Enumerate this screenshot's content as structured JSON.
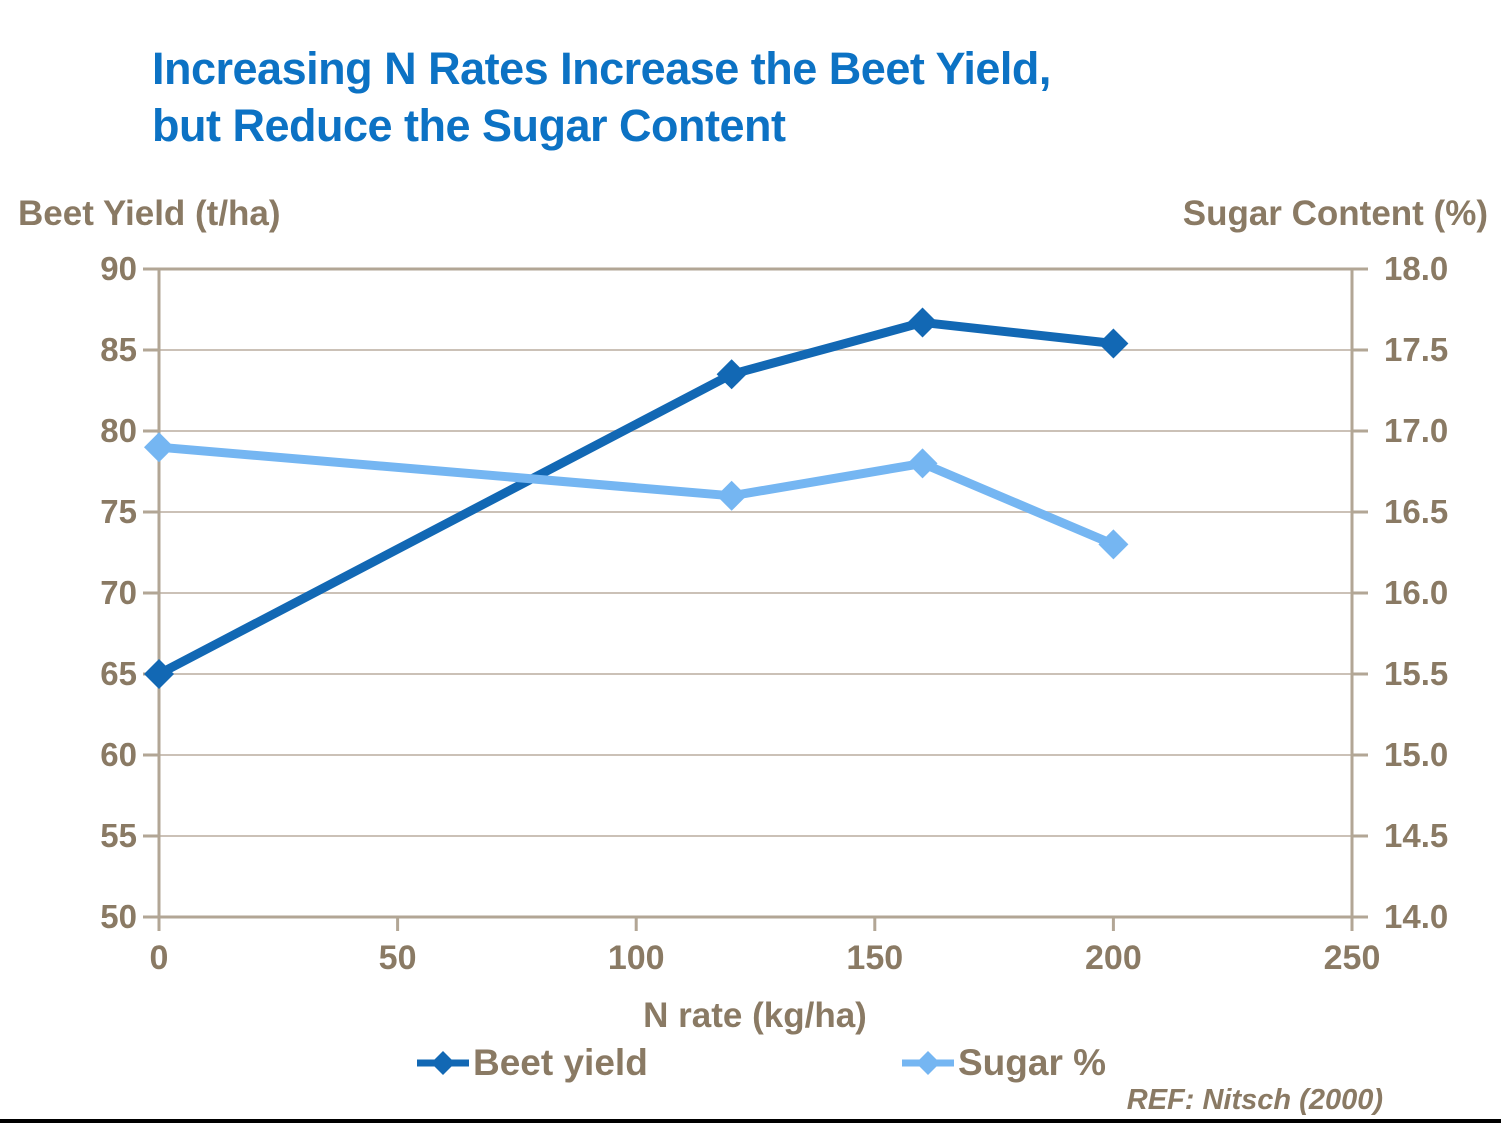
{
  "title": {
    "line1": "Increasing N Rates Increase the Beet Yield,",
    "line2": "but Reduce the Sugar Content",
    "color": "#0c72c4"
  },
  "footer": {
    "ref": "REF: Nitsch (2000)",
    "rule_color": "#000000"
  },
  "chart_data": {
    "type": "line",
    "title": "Increasing N Rates Increase the Beet Yield, but Reduce the Sugar Content",
    "x": [
      0,
      120,
      160,
      200
    ],
    "series": [
      {
        "name": "Beet yield",
        "axis": "left",
        "color": "#1268b4",
        "marker": "diamond",
        "values": [
          65,
          83.5,
          86.7,
          85.4
        ]
      },
      {
        "name": "Sugar %",
        "axis": "right",
        "color": "#75b6f2",
        "marker": "diamond",
        "values": [
          16.9,
          16.6,
          16.8,
          16.3
        ]
      }
    ],
    "xlabel": "N rate (kg/ha)",
    "x_range": [
      0,
      250
    ],
    "x_ticks": [
      "0",
      "50",
      "100",
      "150",
      "200",
      "250"
    ],
    "left_axis": {
      "title": "Beet Yield (t/ha)",
      "range": [
        50,
        90
      ],
      "ticks": [
        "90",
        "85",
        "80",
        "75",
        "70",
        "65",
        "60",
        "55",
        "50"
      ]
    },
    "right_axis": {
      "title": "Sugar Content (%)",
      "range": [
        14,
        18
      ],
      "ticks": [
        "18.0",
        "17.5",
        "17.0",
        "16.5",
        "16.0",
        "15.5",
        "15.0",
        "14.5",
        "14.0"
      ]
    },
    "grid": true,
    "legend_position": "bottom",
    "colors": {
      "text_brown": "#8a7a64",
      "gridline": "#cbc1b7",
      "axis_frame": "#b2a695"
    }
  }
}
